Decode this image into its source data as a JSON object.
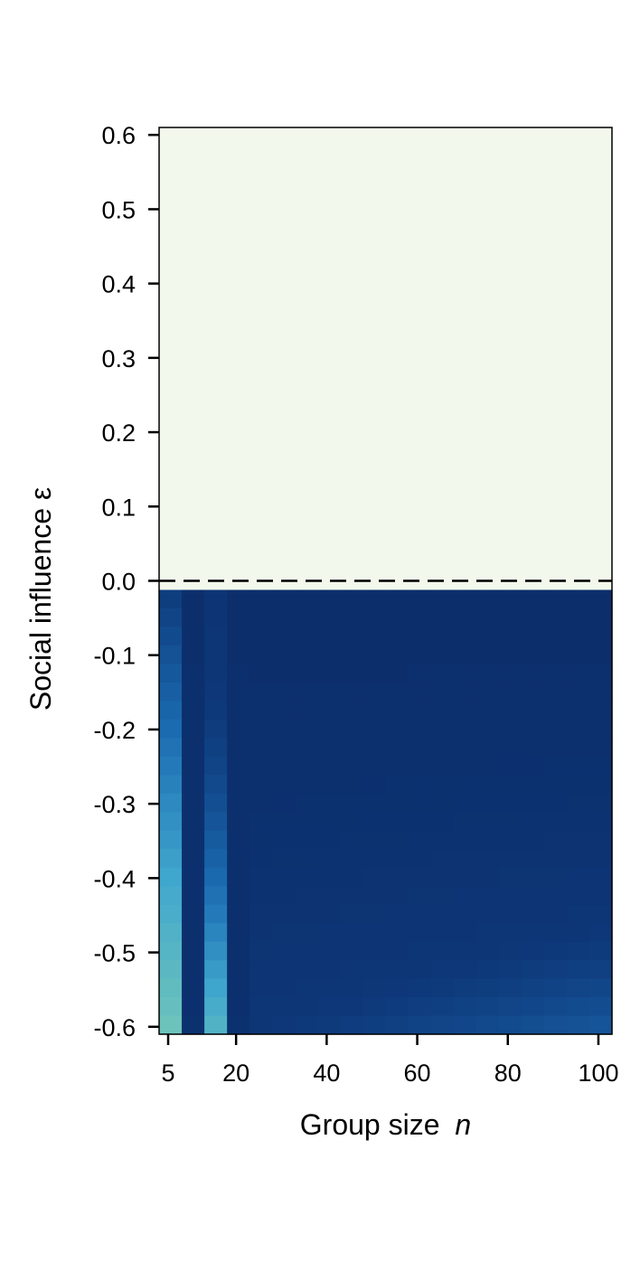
{
  "chart_data": {
    "type": "heatmap",
    "title": "",
    "xlabel": "Group size",
    "xlabel_var": "n",
    "ylabel": "Social influence ε",
    "xlim": [
      3,
      103
    ],
    "ylim": [
      -0.61,
      0.61
    ],
    "x_ticks": [
      5,
      20,
      40,
      60,
      80,
      100
    ],
    "x_tick_labels": [
      "5",
      "20",
      "40",
      "60",
      "80",
      "100"
    ],
    "y_ticks": [
      0.6,
      0.5,
      0.4,
      0.3,
      0.2,
      0.1,
      0.0,
      -0.1,
      -0.2,
      -0.3,
      -0.4,
      -0.5,
      -0.6
    ],
    "y_tick_labels": [
      "0.6",
      "0.5",
      "0.4",
      "0.3",
      "0.2",
      "0.1",
      "0.0",
      "-0.1",
      "-0.2",
      "-0.3",
      "-0.4",
      "-0.5",
      "-0.6"
    ],
    "n_columns": [
      5,
      10,
      15,
      20,
      25,
      30,
      35,
      40,
      45,
      50,
      55,
      60,
      65,
      70,
      75,
      80,
      85,
      90,
      95,
      100
    ],
    "epsilon_rows_top": 0.0,
    "epsilon_rows_bottom": -0.6,
    "n_epsilon_rows": 24,
    "positive_region_color": "#f2f9ec",
    "reference_line": {
      "y": 0.0,
      "style": "dashed",
      "color": "#000000"
    },
    "colormap": [
      "#6cc3bc",
      "#3fa6cd",
      "#1b6bb1",
      "#0d3778",
      "#0c2e6b"
    ],
    "note_values": "color intensity 0 (dark) to 1 (light)"
  }
}
